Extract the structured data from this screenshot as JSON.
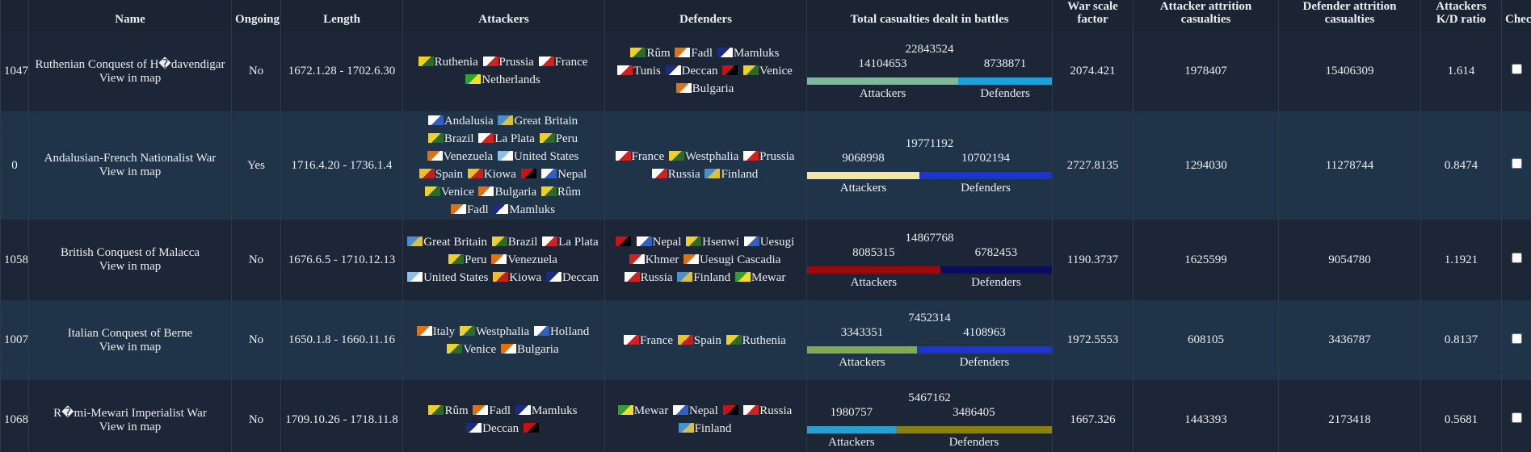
{
  "table": {
    "columns": [
      "Name",
      "Ongoing",
      "Length",
      "Attackers",
      "Defenders",
      "Total casualties dealt in battles",
      "War scale factor",
      "Attacker attrition casualties",
      "Defender attrition casualties",
      "Attackers K/D ratio",
      "Check"
    ],
    "labels": {
      "view_in_map": "View in map",
      "attackers": "Attackers",
      "defenders": "Defenders"
    },
    "rows": [
      {
        "id": 1047,
        "name": "Ruthenian Conquest of H�davendigar",
        "ongoing": "No",
        "length": "1672.1.28 - 1702.6.30",
        "attackers": [
          "Ruthenia",
          "Prussia",
          "France",
          "Netherlands"
        ],
        "defenders": [
          "Rûm",
          "Fadl",
          "Mamluks",
          "Tunis",
          "Deccan",
          null,
          "Venice",
          "Bulgaria"
        ],
        "casualties": {
          "total": 22843524,
          "attackers": 14104653,
          "defenders": 8738871,
          "attackers_color": "#7fb89a",
          "defenders_color": "#1ea0d8"
        },
        "war_scale_factor": 2074.421,
        "attacker_attrition": 1978407,
        "defender_attrition": 15406309,
        "kd_ratio": 1.614
      },
      {
        "id": 0,
        "name": "Andalusian-French Nationalist War",
        "ongoing": "Yes",
        "length": "1716.4.20 - 1736.1.4",
        "attackers": [
          "Andalusia",
          "Great Britain",
          "Brazil",
          "La Plata",
          "Peru",
          "Venezuela",
          "United States",
          "Spain",
          "Kiowa",
          null,
          "Nepal",
          "Venice",
          "Bulgaria",
          "Rûm",
          "Fadl",
          "Mamluks"
        ],
        "defenders": [
          "France",
          "Westphalia",
          "Prussia",
          "Russia",
          "Finland"
        ],
        "casualties": {
          "total": 19771192,
          "attackers": 9068998,
          "defenders": 10702194,
          "attackers_color": "#f4e6a2",
          "defenders_color": "#1b35d2"
        },
        "war_scale_factor": 2727.8135,
        "attacker_attrition": 1294030,
        "defender_attrition": 11278744,
        "kd_ratio": 0.8474
      },
      {
        "id": 1058,
        "name": "British Conquest of Malacca",
        "ongoing": "No",
        "length": "1676.6.5 - 1710.12.13",
        "attackers": [
          "Great Britain",
          "Brazil",
          "La Plata",
          "Peru",
          "Venezuela",
          "United States",
          "Kiowa",
          "Deccan"
        ],
        "defenders": [
          null,
          "Nepal",
          "Hsenwi",
          "Uesugi",
          "Khmer",
          "Uesugi Cascadia",
          "Russia",
          "Finland",
          "Mewar"
        ],
        "casualties": {
          "total": 14867768,
          "attackers": 8085315,
          "defenders": 6782453,
          "attackers_color": "#9b0a0a",
          "defenders_color": "#0b0b5c"
        },
        "war_scale_factor": 1190.3737,
        "attacker_attrition": 1625599,
        "defender_attrition": 9054780,
        "kd_ratio": 1.1921
      },
      {
        "id": 1007,
        "name": "Italian Conquest of Berne",
        "ongoing": "No",
        "length": "1650.1.8 - 1660.11.16",
        "attackers": [
          "Italy",
          "Westphalia",
          "Holland",
          "Venice",
          "Bulgaria"
        ],
        "defenders": [
          "France",
          "Spain",
          "Ruthenia"
        ],
        "casualties": {
          "total": 7452314,
          "attackers": 3343351,
          "defenders": 4108963,
          "attackers_color": "#7fac4f",
          "defenders_color": "#1b35d2"
        },
        "war_scale_factor": 1972.5553,
        "attacker_attrition": 608105,
        "defender_attrition": 3436787,
        "kd_ratio": 0.8137
      },
      {
        "id": 1068,
        "name": "R�mi-Mewari Imperialist War",
        "ongoing": "No",
        "length": "1709.10.26 - 1718.11.8",
        "attackers": [
          "Rûm",
          "Fadl",
          "Mamluks",
          "Deccan",
          null
        ],
        "defenders": [
          "Mewar",
          "Nepal",
          null,
          "Russia",
          "Finland"
        ],
        "casualties": {
          "total": 5467162,
          "attackers": 1980757,
          "defenders": 3486405,
          "attackers_color": "#2aa0d0",
          "defenders_color": "#8a8012"
        },
        "war_scale_factor": 1667.326,
        "attacker_attrition": 1443393,
        "defender_attrition": 2173418,
        "kd_ratio": 0.5681
      }
    ]
  }
}
